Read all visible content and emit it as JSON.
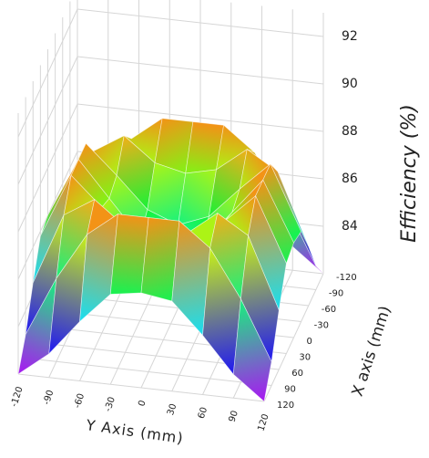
{
  "chart_data": {
    "type": "surface",
    "xlabel": "X axis (mm)",
    "ylabel": "Y Axis (mm)",
    "zlabel": "Efficiency (%)",
    "x": [
      -120,
      -90,
      -60,
      -30,
      0,
      30,
      60,
      90,
      120
    ],
    "y": [
      -120,
      -90,
      -60,
      -30,
      0,
      30,
      60,
      90,
      120
    ],
    "z": [
      [
        82,
        83,
        84.5,
        85.8,
        86,
        85.8,
        84.5,
        83,
        82
      ],
      [
        83,
        85.5,
        87.5,
        88.5,
        88.5,
        88.5,
        87.5,
        85.5,
        83
      ],
      [
        84.5,
        87.5,
        88.3,
        87.3,
        87,
        87.3,
        88.3,
        87.5,
        84.5
      ],
      [
        85.8,
        88.5,
        87.3,
        86,
        85.5,
        86,
        87.3,
        88.5,
        85.8
      ],
      [
        86,
        88.5,
        87,
        85.5,
        85,
        85.5,
        87,
        88.5,
        86
      ],
      [
        85.8,
        88.5,
        87.3,
        86,
        85.5,
        86,
        87.3,
        88.5,
        85.8
      ],
      [
        84.5,
        87.5,
        88.3,
        87.3,
        87,
        87.3,
        88.3,
        87.5,
        84.5
      ],
      [
        83,
        85.5,
        87.5,
        88.5,
        88.5,
        88.5,
        87.5,
        85.5,
        83
      ],
      [
        82,
        83,
        84.5,
        85.8,
        86,
        85.8,
        84.5,
        83,
        82
      ]
    ],
    "xlim": [
      -120,
      120
    ],
    "ylim": [
      -120,
      120
    ],
    "zlim": [
      82,
      93
    ],
    "xticks": [
      -120,
      -90,
      -60,
      -30,
      0,
      30,
      60,
      90,
      120
    ],
    "yticks": [
      -120,
      -90,
      -60,
      -30,
      0,
      30,
      60,
      90,
      120
    ],
    "zticks": [
      84,
      86,
      88,
      90,
      92
    ],
    "colormap": "jet",
    "grid": true
  }
}
